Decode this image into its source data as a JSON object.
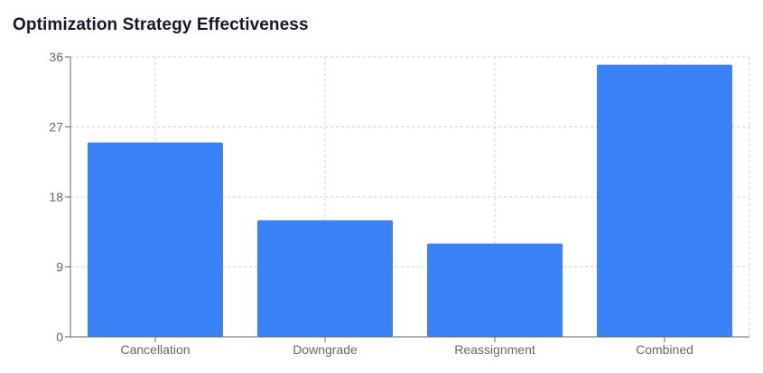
{
  "chart_data": {
    "type": "bar",
    "title": "Optimization Strategy Effectiveness",
    "categories": [
      "Cancellation",
      "Downgrade",
      "Reassignment",
      "Combined"
    ],
    "values": [
      25,
      15,
      12,
      35
    ],
    "xlabel": "",
    "ylabel": "",
    "ylim": [
      0,
      36
    ],
    "yticks": [
      "0",
      "9",
      "18",
      "27",
      "36"
    ],
    "grid": true,
    "legend": "none"
  },
  "colors": {
    "bar": "#3b82f6",
    "grid": "#cccccc",
    "axis": "#666666",
    "title": "#111827"
  }
}
